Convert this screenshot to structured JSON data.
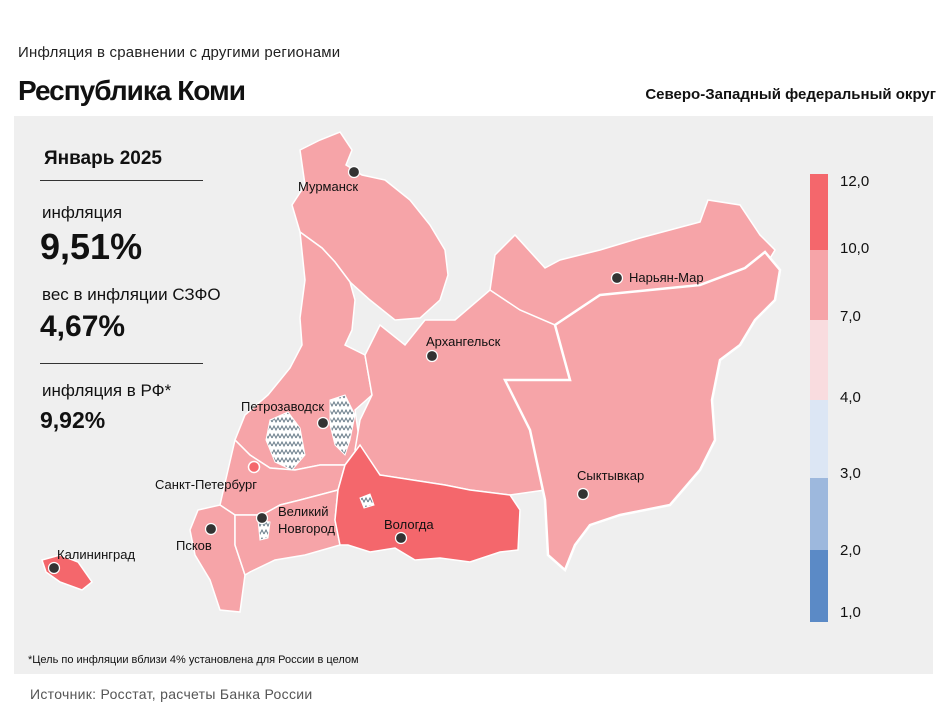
{
  "header": {
    "subtitle": "Инфляция в сравнении с другими регионами",
    "title": "Республика Коми",
    "district": "Северо-Западный федеральный округ"
  },
  "stats": {
    "period": "Январь 2025",
    "inflation_label": "инфляция",
    "inflation_value": "9,51%",
    "weight_label": "вес в инфляции СЗФО",
    "weight_value": "4,67%",
    "rf_label": "инфляция в РФ*",
    "rf_value": "9,92%"
  },
  "cities": {
    "murmansk": "Мурманск",
    "naryan_mar": "Нарьян-Мар",
    "arkhangelsk": "Архангельск",
    "petrozavodsk": "Петрозаводск",
    "spb": "Санкт-Петербург",
    "syktyvkar": "Сыктывкар",
    "velikiy_novgorod_1": "Великий",
    "velikiy_novgorod_2": "Новгород",
    "vologda": "Вологда",
    "pskov": "Псков",
    "kaliningrad": "Калининград"
  },
  "legend": {
    "ticks": [
      "12,0",
      "10,0",
      "7,0",
      "4,0",
      "3,0",
      "2,0",
      "1,0"
    ],
    "colors": [
      "#f4676c",
      "#f6a4a8",
      "#f9dcdf",
      "#dce6f4",
      "#9db8dd",
      "#5b8ac6"
    ]
  },
  "colors": {
    "region_mid": "#f6a4a8",
    "region_high": "#f4676c",
    "panel_bg": "#efefef"
  },
  "footnote": "*Цель по инфляции вблизи 4% установлена для России в целом",
  "source": "Источник: Росстат, расчеты Банка России"
}
